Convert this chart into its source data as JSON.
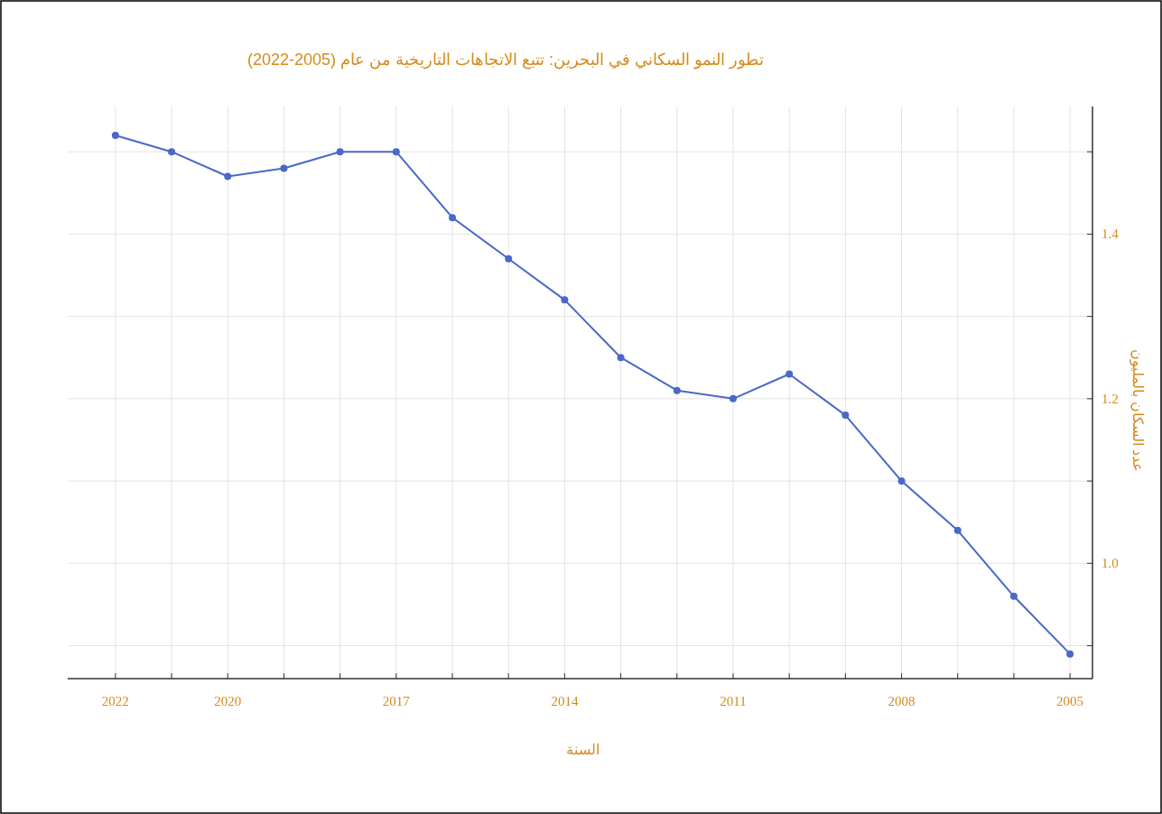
{
  "chart_data": {
    "type": "line",
    "title": "تطور النمو السكاني في البحرين: تتبع الاتجاهات التاريخية من عام (2005-2022)",
    "xlabel": "السنة",
    "ylabel": "عدد السكان بالمليون",
    "x": [
      2022,
      2021,
      2020,
      2019,
      2018,
      2017,
      2016,
      2015,
      2014,
      2013,
      2012,
      2011,
      2010,
      2009,
      2008,
      2007,
      2006,
      2005
    ],
    "series": [
      {
        "color": "#4a68c8",
        "values": [
          1.52,
          1.5,
          1.47,
          1.48,
          1.5,
          1.5,
          1.42,
          1.37,
          1.32,
          1.25,
          1.21,
          1.2,
          1.23,
          1.18,
          1.1,
          1.04,
          0.96,
          0.89
        ]
      }
    ],
    "xlim": [
      2022.85,
      2004.6
    ],
    "xticks": [
      2022,
      {
        "value": 2021,
        "label": null
      },
      2020,
      {
        "value": 2019,
        "label": null
      },
      {
        "value": 2018,
        "label": null
      },
      2017,
      {
        "value": 2016,
        "label": null
      },
      {
        "value": 2015,
        "label": null
      },
      2014,
      {
        "value": 2013,
        "label": null
      },
      {
        "value": 2012,
        "label": null
      },
      2011,
      {
        "value": 2010,
        "label": null
      },
      {
        "value": 2009,
        "label": null
      },
      2008,
      {
        "value": 2007,
        "label": null
      },
      {
        "value": 2006,
        "label": null
      },
      2005
    ],
    "ylim": [
      0.86,
      1.555
    ],
    "yticks": [
      {
        "value": 0.9,
        "label": null
      },
      "1.0",
      {
        "value": 1.1,
        "label": null
      },
      1.2,
      {
        "value": 1.3,
        "label": null
      },
      1.4,
      {
        "value": 1.5,
        "label": null
      }
    ],
    "grid": true,
    "marker": "circle",
    "line_style": "solid"
  }
}
